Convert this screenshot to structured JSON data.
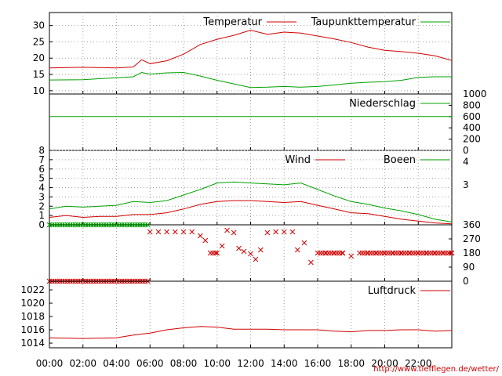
{
  "colors": {
    "red": "#d00000",
    "green": "#00a000",
    "url": "#cc0000"
  },
  "url_text": "http://www.tiefflegen.de/wetter/",
  "x_ticks": [
    "00:00",
    "02:00",
    "04:00",
    "06:00",
    "08:00",
    "10:00",
    "12:00",
    "14:00",
    "16:00",
    "18:00",
    "20:00",
    "22:00"
  ],
  "chart_data": [
    {
      "type": "line",
      "ylim": [
        9,
        34
      ],
      "y_ticks": [
        "30",
        "25",
        "20",
        "15",
        "10"
      ],
      "y_tick_values": [
        30,
        25,
        20,
        15,
        10
      ],
      "grid": true,
      "series": [
        {
          "name": "Temperatur",
          "color": "red",
          "x": [
            0,
            2,
            4,
            5,
            5.5,
            6,
            7,
            8,
            9,
            10,
            11,
            12,
            13,
            14,
            15,
            16,
            17,
            18,
            19,
            20,
            21,
            22,
            23,
            24
          ],
          "values": [
            17,
            17.2,
            17,
            17.3,
            19.5,
            18.3,
            19.2,
            21.2,
            24.2,
            25.8,
            27,
            28.6,
            27.3,
            28,
            27.7,
            26.8,
            25.9,
            24.8,
            23.4,
            22.4,
            22,
            21.5,
            20.7,
            19.3
          ]
        },
        {
          "name": "Taupunkttemperatur",
          "color": "green",
          "x": [
            0,
            2,
            4,
            5,
            5.5,
            6,
            7,
            8,
            9,
            10,
            11,
            12,
            13,
            14,
            15,
            16,
            17,
            18,
            19,
            20,
            21,
            22,
            23,
            24
          ],
          "values": [
            13.3,
            13.4,
            14,
            14.3,
            15.6,
            15.1,
            15.5,
            15.6,
            14.5,
            13.2,
            12.1,
            11,
            11.1,
            11.3,
            11.1,
            11.3,
            11.8,
            12.3,
            12.6,
            12.8,
            13.2,
            14.1,
            14.3,
            14.3
          ]
        }
      ]
    },
    {
      "type": "line",
      "ylim": [
        0,
        1000
      ],
      "y_ticks": [
        "1000",
        "800",
        "600",
        "400",
        "200",
        "0"
      ],
      "y_tick_values": [
        1000,
        800,
        600,
        400,
        200,
        0
      ],
      "series": [
        {
          "name": "Niederschlag",
          "color": "green",
          "x": [
            0,
            24
          ],
          "values": [
            600,
            600
          ]
        }
      ]
    },
    {
      "type": "line",
      "ylim": [
        0,
        8
      ],
      "y_ticks": [
        "8",
        "7",
        "6",
        "5",
        "4",
        "3",
        "2",
        "1",
        "0"
      ],
      "y_tick_values": [
        8,
        7,
        6,
        5,
        4,
        3,
        2,
        1,
        0
      ],
      "right_ticks": [
        "4",
        "3"
      ],
      "right_tick_values": [
        6.8,
        4.3
      ],
      "grid": true,
      "series": [
        {
          "name": "Wind",
          "color": "red",
          "x": [
            0,
            1,
            2,
            3,
            4,
            5,
            6,
            7,
            8,
            9,
            10,
            11,
            12,
            13,
            14,
            15,
            16,
            17,
            18,
            19,
            20,
            21,
            22,
            23,
            24
          ],
          "values": [
            0.8,
            1,
            0.8,
            0.9,
            0.9,
            1.1,
            1.1,
            1.3,
            1.7,
            2.2,
            2.5,
            2.6,
            2.6,
            2.5,
            2.4,
            2.5,
            2.1,
            1.7,
            1.3,
            1.2,
            0.9,
            0.6,
            0.4,
            0.2,
            0.1
          ]
        },
        {
          "name": "Boeen",
          "color": "green",
          "x": [
            0,
            1,
            2,
            3,
            4,
            5,
            6,
            7,
            8,
            9,
            10,
            11,
            12,
            13,
            14,
            15,
            16,
            17,
            18,
            19,
            20,
            21,
            22,
            23,
            24
          ],
          "values": [
            1.7,
            2,
            1.9,
            2,
            2.1,
            2.5,
            2.4,
            2.6,
            3.2,
            3.8,
            4.5,
            4.6,
            4.5,
            4.4,
            4.3,
            4.5,
            3.8,
            3.1,
            2.5,
            2.2,
            1.8,
            1.5,
            1.1,
            0.6,
            0.3
          ]
        }
      ]
    },
    {
      "type": "scatter",
      "ylim": [
        0,
        360
      ],
      "y_ticks": [
        "360",
        "270",
        "180",
        "90",
        "0"
      ],
      "y_tick_values": [
        360,
        270,
        180,
        90,
        0
      ],
      "series": [
        {
          "name": "",
          "color": "green",
          "marker": "x",
          "x": [
            0,
            6
          ],
          "values": [
            360,
            360
          ],
          "band": true
        },
        {
          "name": "",
          "color": "red",
          "marker": "x",
          "x": [
            0,
            6
          ],
          "values": [
            0,
            0
          ],
          "band": true
        },
        {
          "name": "",
          "color": "red",
          "marker": "x",
          "x": [
            6,
            6.5,
            7,
            7.5,
            8,
            8.5,
            9,
            9.3,
            9.6,
            10,
            10.3,
            10.6,
            11,
            11.3,
            11.6,
            12,
            12.3,
            12.6,
            13,
            13.5,
            14,
            14.5,
            14.8,
            15.2,
            15.6,
            16,
            16.5,
            17,
            17.5,
            18,
            18.5,
            19,
            19.5,
            20,
            20.5,
            21,
            21.5,
            22,
            22.5,
            23,
            23.5,
            24
          ],
          "values": [
            315,
            315,
            315,
            315,
            315,
            315,
            290,
            260,
            180,
            180,
            225,
            325,
            310,
            210,
            190,
            175,
            140,
            200,
            310,
            315,
            315,
            315,
            200,
            245,
            120,
            180,
            180,
            180,
            180,
            160,
            180,
            180,
            180,
            180,
            180,
            180,
            180,
            180,
            180,
            180,
            180,
            180
          ]
        }
      ]
    },
    {
      "type": "line",
      "ylim": [
        1013.3,
        1023.3
      ],
      "y_ticks": [
        "1022",
        "1020",
        "1018",
        "1016",
        "1014"
      ],
      "y_tick_values": [
        1022,
        1020,
        1018,
        1016,
        1014
      ],
      "series": [
        {
          "name": "Luftdruck",
          "color": "red",
          "x": [
            0,
            2,
            4,
            5,
            6,
            7,
            8,
            9,
            10,
            11,
            12,
            13,
            14,
            15,
            16,
            17,
            18,
            19,
            20,
            21,
            22,
            23,
            24
          ],
          "values": [
            1014.8,
            1014.7,
            1014.8,
            1015.2,
            1015.5,
            1016,
            1016.3,
            1016.5,
            1016.4,
            1016.1,
            1016.1,
            1016.1,
            1016.0,
            1016.0,
            1016.0,
            1015.8,
            1015.7,
            1015.9,
            1015.9,
            1016.0,
            1016.0,
            1015.8,
            1015.9
          ]
        }
      ]
    }
  ]
}
